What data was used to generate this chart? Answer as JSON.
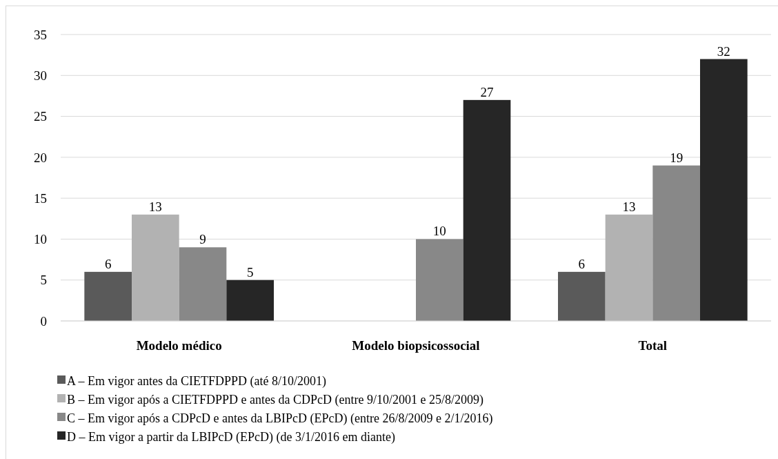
{
  "chart_data": {
    "type": "bar",
    "categories": [
      "Modelo médico",
      "Modelo biopsicossocial",
      "Total"
    ],
    "series": [
      {
        "name": "A – Em vigor antes da CIETFDPPD (até 8/10/2001)",
        "color": "#5a5a5a",
        "values": [
          6,
          null,
          6
        ]
      },
      {
        "name": "B – Em vigor após a CIETFDPPD e antes da CDPcD (entre 9/10/2001 e 25/8/2009)",
        "color": "#b2b2b2",
        "values": [
          13,
          null,
          13
        ]
      },
      {
        "name": "C – Em vigor após a CDPcD e antes da LBIPcD (EPcD) (entre 26/8/2009 e 2/1/2016)",
        "color": "#888888",
        "values": [
          9,
          10,
          19
        ]
      },
      {
        "name": "D – Em vigor a partir da LBIPcD (EPcD) (de 3/1/2016 em diante)",
        "color": "#262626",
        "values": [
          5,
          27,
          32
        ]
      }
    ],
    "ylim": [
      0,
      35
    ],
    "yticks": [
      0,
      5,
      10,
      15,
      20,
      25,
      30,
      35
    ],
    "grid": "y",
    "data_labels": true,
    "legend": "bottom"
  }
}
